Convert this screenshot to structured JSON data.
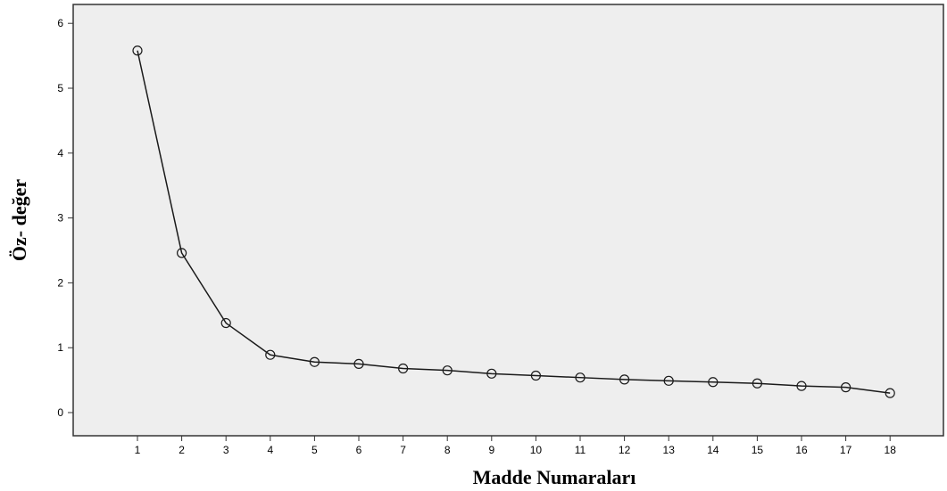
{
  "chart_data": {
    "type": "line",
    "xlabel": "Madde Numaraları",
    "ylabel": "Öz- değer",
    "x": [
      1,
      2,
      3,
      4,
      5,
      6,
      7,
      8,
      9,
      10,
      11,
      12,
      13,
      14,
      15,
      16,
      17,
      18
    ],
    "x_tick_labels": [
      "1",
      "2",
      "3",
      "4",
      "5",
      "6",
      "7",
      "8",
      "9",
      "10",
      "11",
      "12",
      "13",
      "14",
      "15",
      "16",
      "17",
      "18"
    ],
    "y_ticks": [
      0,
      1,
      2,
      3,
      4,
      5,
      6
    ],
    "y_tick_labels": [
      "0",
      "1",
      "2",
      "3",
      "4",
      "5",
      "6"
    ],
    "ylim": [
      -0.3,
      6.3
    ],
    "series": [
      {
        "values": [
          5.58,
          2.46,
          1.38,
          0.89,
          0.78,
          0.75,
          0.68,
          0.65,
          0.6,
          0.57,
          0.54,
          0.51,
          0.49,
          0.47,
          0.45,
          0.41,
          0.39,
          0.3
        ]
      }
    ],
    "grid": false,
    "colors": {
      "plot_background": "#eeeeee",
      "line": "#1a1a1a",
      "marker_stroke": "#1a1a1a"
    }
  }
}
